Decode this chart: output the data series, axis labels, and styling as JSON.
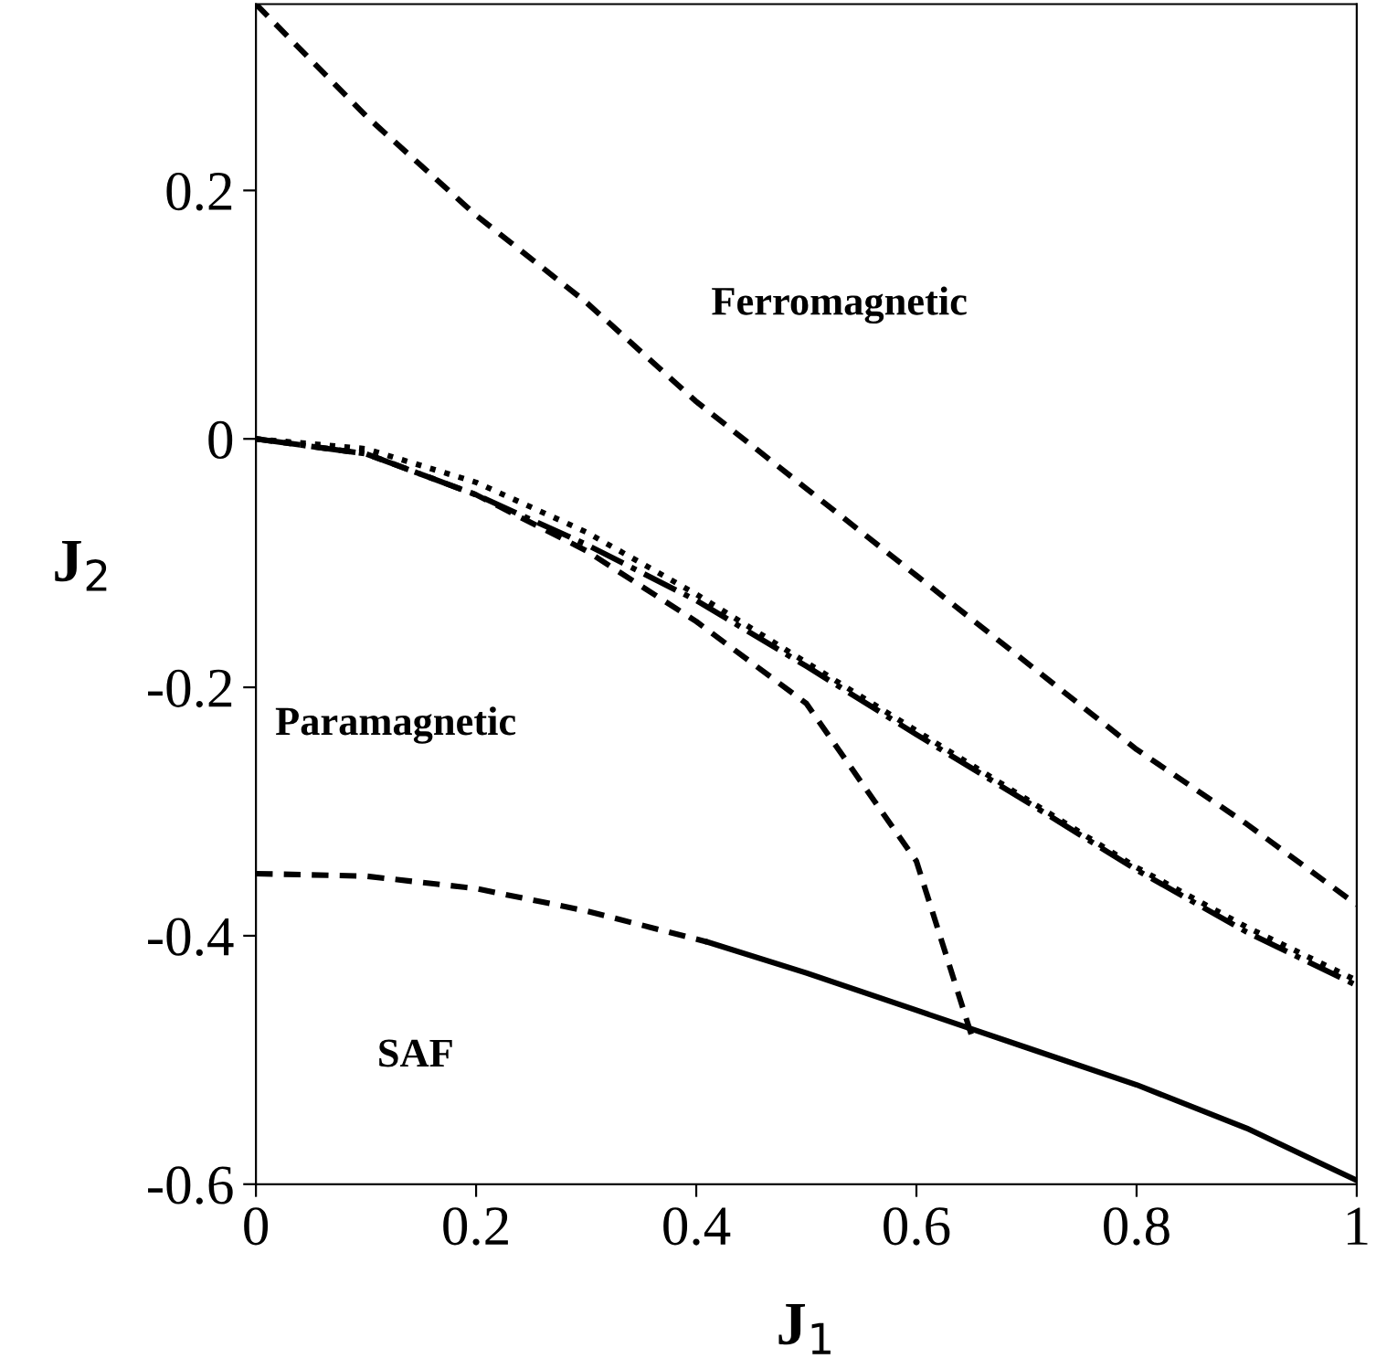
{
  "chart_data": {
    "type": "line",
    "xlabel": "J$_{1}$",
    "ylabel": "J$_{2}$",
    "xlim": [
      0,
      1
    ],
    "ylim": [
      -0.6,
      0.35
    ],
    "xticks": [
      0,
      0.2,
      0.4,
      0.6,
      0.8,
      1
    ],
    "yticks": [
      -0.6,
      -0.4,
      -0.2,
      0,
      0.2
    ],
    "grid": false,
    "legend": false,
    "marker": "none",
    "series": [
      {
        "color": "#000000",
        "line_style": "dashed",
        "x": [
          0,
          0.1,
          0.2,
          0.3,
          0.4,
          0.5,
          0.6,
          0.7,
          0.8,
          0.9,
          1.0
        ],
        "values": [
          0.35,
          0.26,
          0.18,
          0.11,
          0.03,
          -0.04,
          -0.11,
          -0.18,
          -0.25,
          -0.31,
          -0.375
        ]
      },
      {
        "color": "#000000",
        "line_style": "dotted",
        "x": [
          0,
          0.1,
          0.2,
          0.3,
          0.4,
          0.5,
          0.6,
          0.7,
          0.8,
          0.9,
          1.0
        ],
        "values": [
          0,
          -0.008,
          -0.035,
          -0.075,
          -0.125,
          -0.18,
          -0.235,
          -0.29,
          -0.345,
          -0.393,
          -0.436
        ]
      },
      {
        "color": "#000000",
        "line_style": "dashdot",
        "x": [
          0,
          0.1,
          0.2,
          0.3,
          0.4,
          0.5,
          0.6,
          0.7,
          0.8,
          0.9,
          1.0
        ],
        "values": [
          0,
          -0.012,
          -0.045,
          -0.085,
          -0.13,
          -0.183,
          -0.238,
          -0.292,
          -0.347,
          -0.397,
          -0.44
        ]
      },
      {
        "color": "#000000",
        "line_style": "dashed",
        "x": [
          0,
          0.1,
          0.2,
          0.3,
          0.4,
          0.5,
          0.6,
          0.65
        ],
        "values": [
          0,
          -0.012,
          -0.045,
          -0.09,
          -0.147,
          -0.213,
          -0.34,
          -0.48
        ]
      },
      {
        "color": "#000000",
        "line_style": "dashed",
        "x": [
          0,
          0.1,
          0.2,
          0.3,
          0.41
        ],
        "values": [
          -0.35,
          -0.352,
          -0.362,
          -0.38,
          -0.405
        ]
      },
      {
        "color": "#000000",
        "line_style": "solid",
        "x": [
          0.41,
          0.5,
          0.6,
          0.7,
          0.8,
          0.9,
          1.0
        ],
        "values": [
          -0.405,
          -0.43,
          -0.46,
          -0.49,
          -0.52,
          -0.555,
          -0.597
        ]
      }
    ],
    "annotations": [
      "Ferromagnetic",
      "Paramagnetic",
      "SAF"
    ]
  }
}
